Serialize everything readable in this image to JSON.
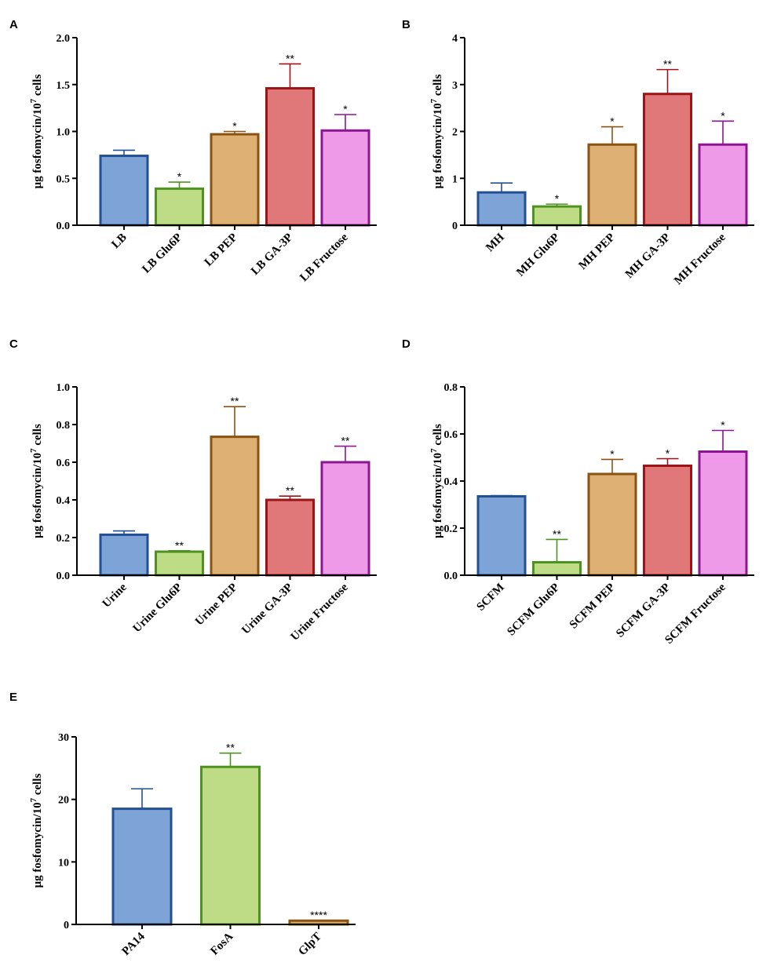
{
  "chart_data": [
    {
      "type": "bar",
      "panel": "A",
      "ylabel": "μg fosfomycin/10",
      "ylabel_exp": "7",
      "ylabel_suffix": " cells",
      "ylim": [
        0,
        2.0
      ],
      "yticks": [
        0,
        0.5,
        1.0,
        1.5,
        2.0
      ],
      "ytick_labels": [
        "0.0",
        "0.5",
        "1.0",
        "1.5",
        "2.0"
      ],
      "categories": [
        "LB",
        "LB Glu6P",
        "LB PEP",
        "LB GA-3P",
        "LB Fructose"
      ],
      "values": [
        0.74,
        0.39,
        0.97,
        1.46,
        1.01
      ],
      "errors": [
        0.06,
        0.07,
        0.03,
        0.26,
        0.17
      ],
      "significance": [
        "",
        "*",
        "*",
        "**",
        "*"
      ],
      "fill_colors": [
        "#7ea3d6",
        "#bddc85",
        "#deb073",
        "#e07778",
        "#ee9ae8"
      ],
      "edge_colors": [
        "#234f93",
        "#4e9322",
        "#8a5311",
        "#9b1418",
        "#8d1591"
      ]
    },
    {
      "type": "bar",
      "panel": "B",
      "ylabel": "μg fosfomycin/10",
      "ylabel_exp": "7",
      "ylabel_suffix": " cells",
      "ylim": [
        0,
        4
      ],
      "yticks": [
        0,
        1,
        2,
        3,
        4
      ],
      "ytick_labels": [
        "0",
        "1",
        "2",
        "3",
        "4"
      ],
      "categories": [
        "MH",
        "MH Glu6P",
        "MH PEP",
        "MH GA-3P",
        "MH Fructose"
      ],
      "values": [
        0.7,
        0.4,
        1.72,
        2.8,
        1.72
      ],
      "errors": [
        0.2,
        0.05,
        0.38,
        0.52,
        0.5
      ],
      "significance": [
        "",
        "*",
        "*",
        "**",
        "*"
      ],
      "fill_colors": [
        "#7ea3d6",
        "#bddc85",
        "#deb073",
        "#e07778",
        "#ee9ae8"
      ],
      "edge_colors": [
        "#234f93",
        "#4e9322",
        "#8a5311",
        "#9b1418",
        "#8d1591"
      ]
    },
    {
      "type": "bar",
      "panel": "C",
      "ylabel": "μg fosfomycin/10",
      "ylabel_exp": "7",
      "ylabel_suffix": " cells",
      "ylim": [
        0,
        1.0
      ],
      "yticks": [
        0,
        0.2,
        0.4,
        0.6,
        0.8,
        1.0
      ],
      "ytick_labels": [
        "0.0",
        "0.2",
        "0.4",
        "0.6",
        "0.8",
        "1.0"
      ],
      "categories": [
        "Urine",
        "Urine Glu6P",
        "Urine PEP",
        "Urine GA-3P",
        "Urine Fructose"
      ],
      "values": [
        0.215,
        0.125,
        0.735,
        0.4,
        0.6
      ],
      "errors": [
        0.02,
        0.005,
        0.16,
        0.02,
        0.085
      ],
      "significance": [
        "",
        "**",
        "**",
        "**",
        "**"
      ],
      "fill_colors": [
        "#7ea3d6",
        "#bddc85",
        "#deb073",
        "#e07778",
        "#ee9ae8"
      ],
      "edge_colors": [
        "#234f93",
        "#4e9322",
        "#8a5311",
        "#9b1418",
        "#8d1591"
      ]
    },
    {
      "type": "bar",
      "panel": "D",
      "ylabel": "μg fosfomycin/10",
      "ylabel_exp": "7",
      "ylabel_suffix": " cells",
      "ylim": [
        0,
        0.8
      ],
      "yticks": [
        0,
        0.2,
        0.4,
        0.6,
        0.8
      ],
      "ytick_labels": [
        "0.0",
        "0.2",
        "0.4",
        "0.6",
        "0.8"
      ],
      "categories": [
        "SCFM",
        "SCFM Glu6P",
        "SCFM PEP",
        "SCFM GA-3P",
        "SCFM Fructose"
      ],
      "values": [
        0.335,
        0.055,
        0.43,
        0.465,
        0.525
      ],
      "errors": [
        0.003,
        0.097,
        0.062,
        0.03,
        0.09
      ],
      "significance": [
        "",
        "**",
        "*",
        "*",
        "*"
      ],
      "fill_colors": [
        "#7ea3d6",
        "#bddc85",
        "#deb073",
        "#e07778",
        "#ee9ae8"
      ],
      "edge_colors": [
        "#234f93",
        "#4e9322",
        "#8a5311",
        "#9b1418",
        "#8d1591"
      ]
    },
    {
      "type": "bar",
      "panel": "E",
      "ylabel": "μg fosfomycin/10",
      "ylabel_exp": "7",
      "ylabel_suffix": " cells",
      "ylim": [
        0,
        30
      ],
      "yticks": [
        0,
        10,
        20,
        30
      ],
      "ytick_labels": [
        "0",
        "10",
        "20",
        "30"
      ],
      "categories": [
        "PA14",
        "FosA",
        "GlpT"
      ],
      "values": [
        18.5,
        25.2,
        0.6
      ],
      "errors": [
        3.2,
        2.2,
        0
      ],
      "significance": [
        "",
        "**",
        "****"
      ],
      "fill_colors": [
        "#7ea3d6",
        "#bddc85",
        "#deb073"
      ],
      "edge_colors": [
        "#234f93",
        "#4e9322",
        "#8a5311"
      ]
    }
  ]
}
